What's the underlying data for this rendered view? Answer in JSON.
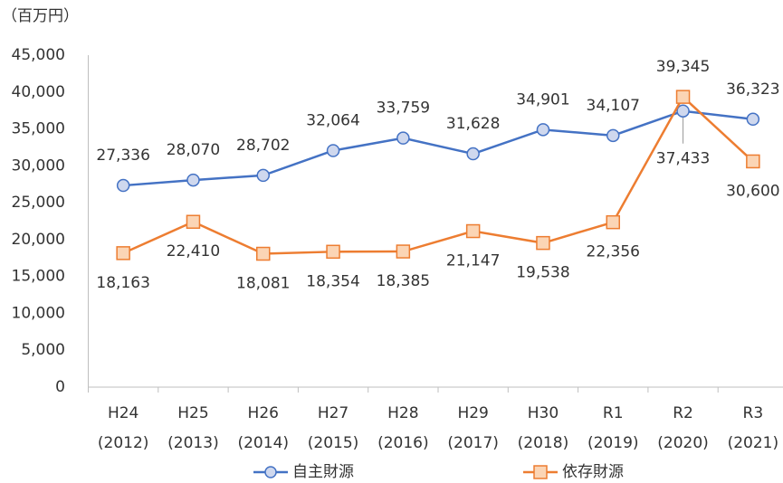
{
  "chart_data": {
    "type": "line",
    "unit_label": "（百万円）",
    "categories": [
      [
        "H24",
        "(2012)"
      ],
      [
        "H25",
        "(2013)"
      ],
      [
        "H26",
        "(2014)"
      ],
      [
        "H27",
        "(2015)"
      ],
      [
        "H28",
        "(2016)"
      ],
      [
        "H29",
        "(2017)"
      ],
      [
        "H30",
        "(2018)"
      ],
      [
        "R1",
        "(2019)"
      ],
      [
        "R2",
        "(2020)"
      ],
      [
        "R3",
        "(2021)"
      ]
    ],
    "series": [
      {
        "name": "自主財源",
        "color": "#4472c4",
        "marker": "circle",
        "marker_fill": "#cfd8ee",
        "values": [
          27336,
          28070,
          28702,
          32064,
          33759,
          31628,
          34901,
          34107,
          37433,
          36323
        ],
        "value_labels": [
          "27,336",
          "28,070",
          "28,702",
          "32,064",
          "33,759",
          "31,628",
          "34,901",
          "34,107",
          "37,433",
          "36,323"
        ]
      },
      {
        "name": "依存財源",
        "color": "#ed7d31",
        "marker": "square",
        "marker_fill": "#fbd5b5",
        "values": [
          18163,
          22410,
          18081,
          18354,
          18385,
          21147,
          19538,
          22356,
          39345,
          30600
        ],
        "value_labels": [
          "18,163",
          "22,410",
          "18,081",
          "18,354",
          "18,385",
          "21,147",
          "19,538",
          "22,356",
          "39,345",
          "30,600"
        ]
      }
    ],
    "ylim": [
      0,
      45000
    ],
    "yticks": [
      0,
      {
        "value": 5000,
        "label": "5,000"
      },
      {
        "value": 10000,
        "label": "10,000"
      },
      {
        "value": 15000,
        "label": "15,000"
      },
      {
        "value": 20000,
        "label": "20,000"
      },
      {
        "value": 25000,
        "label": "25,000"
      },
      {
        "value": 30000,
        "label": "30,000"
      },
      {
        "value": 35000,
        "label": "35,000"
      },
      {
        "value": 40000,
        "label": "40,000"
      },
      {
        "value": 45000,
        "label": "45,000"
      }
    ],
    "grid": false,
    "legend": "bottom"
  }
}
